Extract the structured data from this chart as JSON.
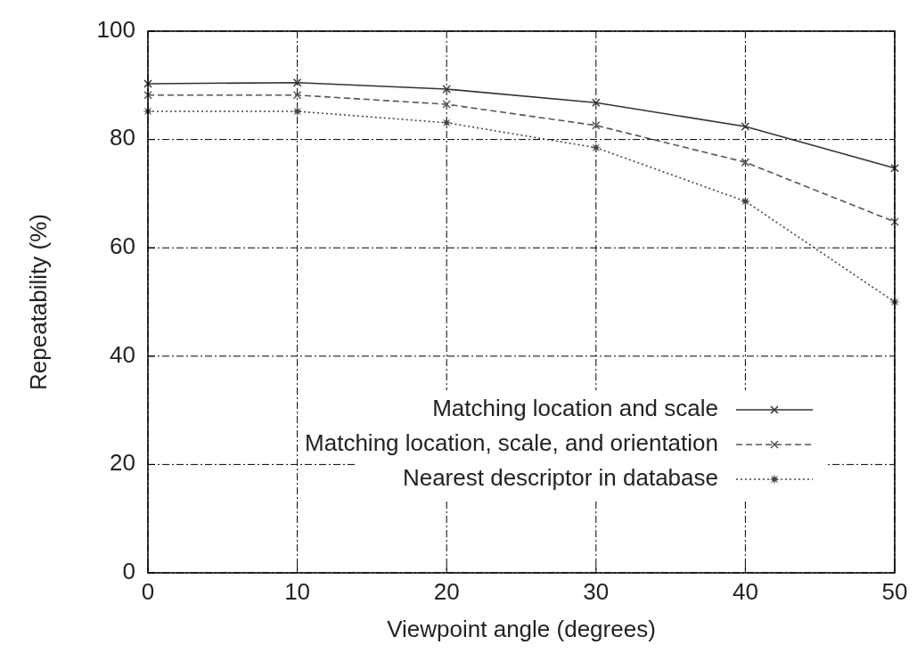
{
  "chart_data": {
    "type": "line",
    "xlabel": "Viewpoint angle (degrees)",
    "ylabel": "Repeatability (%)",
    "x": [
      0,
      10,
      20,
      30,
      40,
      50
    ],
    "xlim": [
      0,
      50
    ],
    "xticks": [
      0,
      10,
      20,
      30,
      40,
      50
    ],
    "ylim": [
      0,
      100
    ],
    "yticks": [
      0,
      20,
      40,
      60,
      80,
      100
    ],
    "grid": true,
    "legend": "bottom right",
    "series": [
      {
        "name": "Matching location and scale",
        "color": "#333333",
        "line_style": "solid",
        "marker": "cross",
        "values": [
          90.3,
          90.5,
          89.3,
          86.8,
          82.4,
          74.7
        ]
      },
      {
        "name": "Matching location, scale, and orientation",
        "color": "#555555",
        "line_style": "dashed",
        "marker": "cross",
        "values": [
          88.2,
          88.2,
          86.5,
          82.6,
          75.8,
          64.8
        ]
      },
      {
        "name": "Nearest descriptor in database",
        "color": "#444444",
        "line_style": "dotted",
        "marker": "star",
        "values": [
          85.2,
          85.2,
          83.1,
          78.5,
          68.6,
          50
        ]
      }
    ]
  }
}
